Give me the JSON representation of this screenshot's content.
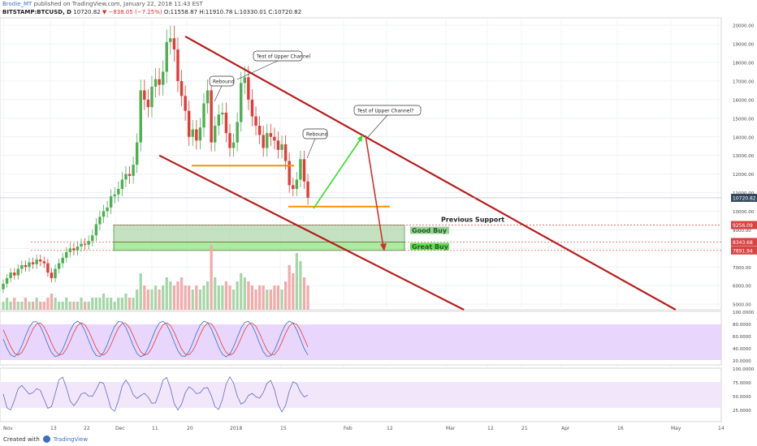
{
  "header": {
    "author": "Brodie_MT",
    "published": "published on TradingView.com, January 22, 2018 11:43 EST",
    "symbol": "BITSTAMP:BTCUSD, D",
    "last": "10720.82",
    "change": "▼ −838.05 (−7.25%)",
    "ohlc": "O:11558.87 H:11910.78 L:10330.01 C:10720.82"
  },
  "footer": {
    "created_with": "Created with",
    "brand": "TradingView"
  },
  "chart_data": {
    "type": "candlestick",
    "price_axis": {
      "ticks": [
        5000,
        6000,
        7000,
        8000,
        9000,
        10000,
        11000,
        12000,
        13000,
        14000,
        15000,
        16000,
        17000,
        18000,
        19000,
        20000
      ],
      "tick_labels": [
        "5000.00",
        "6000.00",
        "7000.00",
        "8000.00",
        "9000.00",
        "10000.00",
        "11000.00",
        "12000.00",
        "13000.00",
        "14000.00",
        "15000.00",
        "16000.00",
        "17000.00",
        "18000.00",
        "19000.00",
        "20000.00"
      ],
      "range": [
        4700,
        20400
      ]
    },
    "time_axis": {
      "labels": [
        "Nov",
        "13",
        "22",
        "Dec",
        "11",
        "20",
        "2018",
        "15",
        "Feb",
        "12",
        "Mar",
        "12",
        "21",
        "Apr",
        "16",
        "May",
        "14"
      ]
    },
    "candles": [
      [
        5800,
        6100
      ],
      [
        6100,
        6400
      ],
      [
        6400,
        6700
      ],
      [
        6700,
        6550
      ],
      [
        6550,
        6900
      ],
      [
        6900,
        7100
      ],
      [
        7100,
        7000
      ],
      [
        7000,
        7250
      ],
      [
        7250,
        7150
      ],
      [
        7150,
        7400
      ],
      [
        7400,
        7300
      ],
      [
        7300,
        7200
      ],
      [
        7200,
        6700
      ],
      [
        6700,
        6400
      ],
      [
        6400,
        6900
      ],
      [
        6900,
        7200
      ],
      [
        7200,
        7500
      ],
      [
        7500,
        7800
      ],
      [
        7800,
        8000
      ],
      [
        8000,
        7900
      ],
      [
        7900,
        8100
      ],
      [
        8100,
        8250
      ],
      [
        8250,
        8200
      ],
      [
        8200,
        8400
      ],
      [
        8400,
        8700
      ],
      [
        8700,
        9300
      ],
      [
        9300,
        9700
      ],
      [
        9700,
        10000
      ],
      [
        10000,
        10200
      ],
      [
        10200,
        10800
      ],
      [
        10800,
        10900
      ],
      [
        10900,
        11200
      ],
      [
        11200,
        11700
      ],
      [
        11700,
        12000
      ],
      [
        12000,
        11900
      ],
      [
        11900,
        12500
      ],
      [
        12500,
        13700
      ],
      [
        13700,
        16500
      ],
      [
        16500,
        16000
      ],
      [
        16000,
        15600
      ],
      [
        15600,
        16700
      ],
      [
        16700,
        17100
      ],
      [
        17100,
        16800
      ],
      [
        16800,
        17500
      ],
      [
        17500,
        19100
      ],
      [
        19100,
        19300
      ],
      [
        19300,
        18700
      ],
      [
        18700,
        17000
      ],
      [
        17000,
        16200
      ],
      [
        16200,
        15400
      ],
      [
        15400,
        14000
      ],
      [
        14000,
        14400
      ],
      [
        14400,
        13800
      ],
      [
        13800,
        14500
      ],
      [
        14500,
        15800
      ],
      [
        15800,
        16500
      ],
      [
        16500,
        13700
      ],
      [
        13700,
        14600
      ],
      [
        14600,
        15200
      ],
      [
        15200,
        15300
      ],
      [
        15300,
        14200
      ],
      [
        14200,
        13400
      ],
      [
        13400,
        13700
      ],
      [
        13700,
        14800
      ],
      [
        14800,
        16900
      ],
      [
        16900,
        17200
      ],
      [
        17200,
        16000
      ],
      [
        16000,
        15100
      ],
      [
        15100,
        14600
      ],
      [
        14600,
        14100
      ],
      [
        14100,
        13400
      ],
      [
        13400,
        14200
      ],
      [
        14200,
        14000
      ],
      [
        14000,
        13800
      ],
      [
        13800,
        13300
      ],
      [
        13300,
        13600
      ],
      [
        13600,
        12700
      ],
      [
        12700,
        11400
      ],
      [
        11400,
        11200
      ],
      [
        11200,
        11700
      ],
      [
        11700,
        12800
      ],
      [
        12800,
        11600
      ],
      [
        11600,
        10720
      ]
    ],
    "volumes": [
      2,
      3,
      2,
      3,
      2,
      2,
      3,
      2,
      2,
      3,
      2,
      2,
      3,
      4,
      3,
      2,
      2,
      3,
      2,
      2,
      2,
      3,
      2,
      2,
      3,
      3,
      3,
      4,
      3,
      3,
      2,
      3,
      3,
      4,
      3,
      3,
      5,
      9,
      6,
      5,
      5,
      6,
      5,
      6,
      8,
      7,
      6,
      7,
      8,
      6,
      6,
      5,
      6,
      5,
      6,
      7,
      16,
      8,
      6,
      6,
      7,
      6,
      5,
      7,
      9,
      8,
      7,
      6,
      5,
      6,
      6,
      5,
      5,
      6,
      6,
      5,
      7,
      11,
      9,
      14,
      12,
      8,
      6
    ],
    "channel_lines": [
      {
        "name": "upper channel",
        "from": [
          49,
          19400
        ],
        "to": [
          181,
          4700
        ]
      },
      {
        "name": "lower channel",
        "from": [
          42,
          13000
        ],
        "to": [
          124,
          4700
        ]
      }
    ],
    "support_lines": [
      {
        "level": 12450
      },
      {
        "level": 10250
      }
    ],
    "zones": [
      {
        "label": "Previous Support",
        "level": 9256.09
      },
      {
        "label": "Good Buy",
        "top": 9256.09,
        "bottom": 8343.68
      },
      {
        "label": "Great Buy",
        "top": 8343.68,
        "bottom": 7891.94
      }
    ],
    "price_labels": [
      "10720.82",
      "9256.09",
      "8343.68",
      "7891.94"
    ],
    "callouts": [
      "Test of Upper Channel",
      "Rebound",
      "Rebound",
      "Test of Upper Channel?"
    ],
    "stoch": {
      "axis_labels": [
        "100.0000",
        "80.0000",
        "60.0000",
        "40.0000",
        "20.0000"
      ]
    },
    "rsi": {
      "axis_labels": [
        "100.0000",
        "75.0000",
        "50.0000",
        "25.0000"
      ]
    },
    "colors": {
      "bull": "#4caf50",
      "bear": "#e53935",
      "channel": "#b71c1c",
      "support": "#ff8f00",
      "zone_good": "#9ccf97",
      "zone_great": "#66dd55",
      "stoch_band": "#e3ccfb",
      "up_arrow": "#31e02a",
      "down_arrow": "#d32f2f"
    }
  }
}
